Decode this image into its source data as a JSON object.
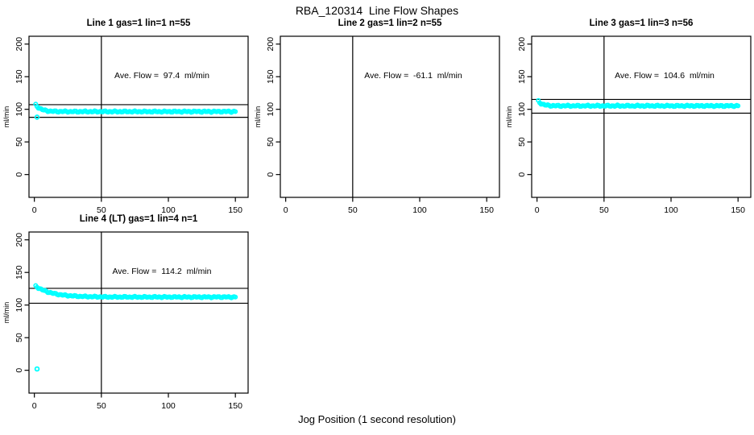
{
  "page": {
    "main_title": "RBA_120314  Line Flow Shapes",
    "bottom_axis_label": "Jog Position (1 second resolution)",
    "background_color": "#FFFFFF",
    "point_color": "#00FFFF",
    "axis_color": "#000000"
  },
  "chart_data": [
    {
      "type": "scatter",
      "panel": 1,
      "title": "Line 1 gas=1 lin=1 n=55",
      "ylabel": "ml/min",
      "annotation": "Ave. Flow =  97.4  ml/min",
      "ave_flow_ml_min": 97.4,
      "xlim": [
        -4,
        159.5
      ],
      "ylim": [
        -35,
        212
      ],
      "x_ticks": [
        0,
        50,
        100,
        150
      ],
      "y_ticks": [
        0,
        50,
        100,
        150,
        200
      ],
      "grid": false,
      "vline_x": 50,
      "ref_lines_y": [
        107.1,
        87.7
      ],
      "series_model": {
        "x_start": 1,
        "x_end": 150,
        "x_step": 1,
        "y_start": 107,
        "y_plateau": 96.5,
        "decay_tau": 4,
        "noise_amp": 1.0
      },
      "outlier_points": [
        [
          2,
          88
        ]
      ]
    },
    {
      "type": "scatter",
      "panel": 2,
      "title": "Line 2 gas=1 lin=2 n=55",
      "ylabel": "ml/min",
      "annotation": "Ave. Flow =  -61.1  ml/min",
      "ave_flow_ml_min": -61.1,
      "xlim": [
        -4,
        159.5
      ],
      "ylim": [
        -35,
        212
      ],
      "x_ticks": [
        0,
        50,
        100,
        150
      ],
      "y_ticks": [
        0,
        50,
        100,
        150,
        200
      ],
      "grid": false,
      "vline_x": 50,
      "ref_lines_y": [],
      "series_model": null,
      "outlier_points": []
    },
    {
      "type": "scatter",
      "panel": 3,
      "title": "Line 3 gas=1 lin=3 n=56",
      "ylabel": "ml/min",
      "annotation": "Ave. Flow =  104.6  ml/min",
      "ave_flow_ml_min": 104.6,
      "xlim": [
        -4,
        159.5
      ],
      "ylim": [
        -35,
        212
      ],
      "x_ticks": [
        0,
        50,
        100,
        150
      ],
      "y_ticks": [
        0,
        50,
        100,
        150,
        200
      ],
      "grid": false,
      "vline_x": 50,
      "ref_lines_y": [
        115.1,
        94.1
      ],
      "series_model": {
        "x_start": 1,
        "x_end": 150,
        "x_step": 1,
        "y_start": 112.5,
        "y_plateau": 105.3,
        "decay_tau": 3,
        "noise_amp": 1.0
      },
      "outlier_points": []
    },
    {
      "type": "scatter",
      "panel": 4,
      "title": "Line 4 (LT) gas=1 lin=4 n=1",
      "ylabel": "ml/min",
      "annotation": "Ave. Flow =  114.2  ml/min",
      "ave_flow_ml_min": 114.2,
      "xlim": [
        -4,
        159.5
      ],
      "ylim": [
        -35,
        212
      ],
      "x_ticks": [
        0,
        50,
        100,
        150
      ],
      "y_ticks": [
        0,
        50,
        100,
        150,
        200
      ],
      "grid": false,
      "vline_x": 50,
      "ref_lines_y": [
        125.6,
        102.8
      ],
      "series_model": {
        "x_start": 1,
        "x_end": 150,
        "x_step": 1,
        "y_start": 129,
        "y_plateau": 112.3,
        "decay_tau": 12,
        "noise_amp": 0.9
      },
      "outlier_points": [
        [
          2,
          2
        ]
      ]
    }
  ]
}
